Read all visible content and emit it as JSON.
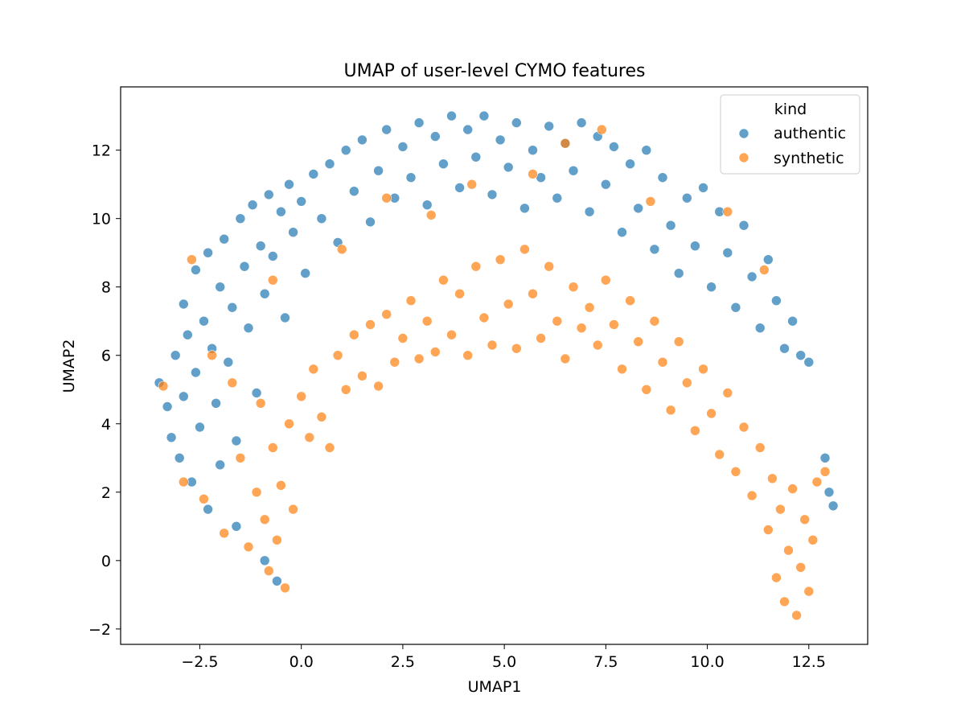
{
  "chart_data": {
    "type": "scatter",
    "title": "UMAP of user-level CYMO features",
    "xlabel": "UMAP1",
    "ylabel": "UMAP2",
    "xlim": [
      -4.45,
      13.95
    ],
    "ylim": [
      -2.45,
      13.85
    ],
    "xticks": [
      -2.5,
      0.0,
      2.5,
      5.0,
      7.5,
      10.0,
      12.5
    ],
    "xtick_labels": [
      "−2.5",
      "0.0",
      "2.5",
      "5.0",
      "7.5",
      "10.0",
      "12.5"
    ],
    "yticks": [
      -2,
      0,
      2,
      4,
      6,
      8,
      10,
      12
    ],
    "ytick_labels": [
      "−2",
      "0",
      "2",
      "4",
      "6",
      "8",
      "10",
      "12"
    ],
    "grid": false,
    "legend": {
      "title": "kind",
      "placement": "top-right"
    },
    "series": [
      {
        "name": "authentic",
        "color": "#1f77b4",
        "points": [
          [
            -3.5,
            5.2
          ],
          [
            -3.3,
            4.5
          ],
          [
            -3.2,
            3.6
          ],
          [
            -3.1,
            6.0
          ],
          [
            -3.0,
            3.0
          ],
          [
            -2.9,
            7.5
          ],
          [
            -2.9,
            4.8
          ],
          [
            -2.8,
            6.6
          ],
          [
            -2.7,
            2.3
          ],
          [
            -2.6,
            8.5
          ],
          [
            -2.6,
            5.5
          ],
          [
            -2.5,
            3.9
          ],
          [
            -2.4,
            7.0
          ],
          [
            -2.3,
            9.0
          ],
          [
            -2.3,
            1.5
          ],
          [
            -2.2,
            6.2
          ],
          [
            -2.1,
            4.6
          ],
          [
            -2.0,
            8.0
          ],
          [
            -2.0,
            2.8
          ],
          [
            -1.9,
            9.4
          ],
          [
            -1.8,
            5.8
          ],
          [
            -1.7,
            7.4
          ],
          [
            -1.6,
            1.0
          ],
          [
            -1.6,
            3.5
          ],
          [
            -1.5,
            10.0
          ],
          [
            -1.4,
            8.6
          ],
          [
            -1.3,
            6.8
          ],
          [
            -1.2,
            10.4
          ],
          [
            -1.1,
            4.9
          ],
          [
            -1.0,
            9.2
          ],
          [
            -0.9,
            0.0
          ],
          [
            -0.9,
            7.8
          ],
          [
            -0.8,
            10.7
          ],
          [
            -0.7,
            8.9
          ],
          [
            -0.6,
            -0.6
          ],
          [
            -0.5,
            10.2
          ],
          [
            -0.4,
            7.1
          ],
          [
            -0.3,
            11.0
          ],
          [
            -0.2,
            9.6
          ],
          [
            0.0,
            10.5
          ],
          [
            0.1,
            8.4
          ],
          [
            0.3,
            11.3
          ],
          [
            0.5,
            10.0
          ],
          [
            0.7,
            11.6
          ],
          [
            0.9,
            9.3
          ],
          [
            1.1,
            12.0
          ],
          [
            1.3,
            10.8
          ],
          [
            1.5,
            12.3
          ],
          [
            1.7,
            9.9
          ],
          [
            1.9,
            11.4
          ],
          [
            2.1,
            12.6
          ],
          [
            2.3,
            10.6
          ],
          [
            2.5,
            12.1
          ],
          [
            2.7,
            11.2
          ],
          [
            2.9,
            12.8
          ],
          [
            3.1,
            10.4
          ],
          [
            3.3,
            12.4
          ],
          [
            3.5,
            11.6
          ],
          [
            3.7,
            13.0
          ],
          [
            3.9,
            10.9
          ],
          [
            4.1,
            12.6
          ],
          [
            4.3,
            11.8
          ],
          [
            4.5,
            13.0
          ],
          [
            4.7,
            10.7
          ],
          [
            4.9,
            12.3
          ],
          [
            5.1,
            11.5
          ],
          [
            5.3,
            12.8
          ],
          [
            5.5,
            10.3
          ],
          [
            5.7,
            12.0
          ],
          [
            5.9,
            11.2
          ],
          [
            6.1,
            12.7
          ],
          [
            6.3,
            10.6
          ],
          [
            6.5,
            12.2
          ],
          [
            6.7,
            11.4
          ],
          [
            6.9,
            12.8
          ],
          [
            7.1,
            10.2
          ],
          [
            7.3,
            12.4
          ],
          [
            7.5,
            11.0
          ],
          [
            7.7,
            12.1
          ],
          [
            7.9,
            9.6
          ],
          [
            8.1,
            11.6
          ],
          [
            8.3,
            10.3
          ],
          [
            8.5,
            12.0
          ],
          [
            8.7,
            9.1
          ],
          [
            8.9,
            11.2
          ],
          [
            9.1,
            9.8
          ],
          [
            9.3,
            8.4
          ],
          [
            9.5,
            10.6
          ],
          [
            9.7,
            9.2
          ],
          [
            9.9,
            10.9
          ],
          [
            10.1,
            8.0
          ],
          [
            10.3,
            10.2
          ],
          [
            10.5,
            9.0
          ],
          [
            10.7,
            7.4
          ],
          [
            10.9,
            9.8
          ],
          [
            11.1,
            8.3
          ],
          [
            11.3,
            6.8
          ],
          [
            11.5,
            8.8
          ],
          [
            11.7,
            7.6
          ],
          [
            11.9,
            6.2
          ],
          [
            12.1,
            7.0
          ],
          [
            12.3,
            6.0
          ],
          [
            12.5,
            5.8
          ],
          [
            12.9,
            3.0
          ],
          [
            13.0,
            2.0
          ],
          [
            13.1,
            1.6
          ]
        ]
      },
      {
        "name": "synthetic",
        "color": "#ff7f0e",
        "points": [
          [
            -3.4,
            5.1
          ],
          [
            -2.9,
            2.3
          ],
          [
            -2.7,
            8.8
          ],
          [
            -2.4,
            1.8
          ],
          [
            -2.2,
            6.0
          ],
          [
            -1.9,
            0.8
          ],
          [
            -1.7,
            5.2
          ],
          [
            -1.5,
            3.0
          ],
          [
            -1.3,
            0.4
          ],
          [
            -1.1,
            2.0
          ],
          [
            -1.0,
            4.6
          ],
          [
            -0.9,
            1.2
          ],
          [
            -0.8,
            -0.3
          ],
          [
            -0.7,
            3.3
          ],
          [
            -0.6,
            0.6
          ],
          [
            -0.5,
            2.2
          ],
          [
            -0.4,
            -0.8
          ],
          [
            -0.3,
            4.0
          ],
          [
            -0.2,
            1.5
          ],
          [
            0.0,
            4.8
          ],
          [
            0.2,
            3.6
          ],
          [
            0.3,
            5.6
          ],
          [
            0.5,
            4.2
          ],
          [
            0.7,
            3.3
          ],
          [
            0.9,
            6.0
          ],
          [
            1.1,
            5.0
          ],
          [
            1.3,
            6.6
          ],
          [
            1.5,
            5.4
          ],
          [
            1.7,
            6.9
          ],
          [
            1.9,
            5.1
          ],
          [
            2.1,
            7.2
          ],
          [
            2.3,
            5.8
          ],
          [
            2.5,
            6.5
          ],
          [
            2.7,
            7.6
          ],
          [
            2.9,
            5.9
          ],
          [
            3.1,
            7.0
          ],
          [
            3.3,
            6.1
          ],
          [
            3.5,
            8.2
          ],
          [
            3.7,
            6.6
          ],
          [
            3.9,
            7.8
          ],
          [
            4.1,
            6.0
          ],
          [
            4.3,
            8.6
          ],
          [
            4.5,
            7.1
          ],
          [
            4.7,
            6.3
          ],
          [
            4.9,
            8.8
          ],
          [
            5.1,
            7.5
          ],
          [
            5.3,
            6.2
          ],
          [
            5.5,
            9.1
          ],
          [
            5.7,
            7.8
          ],
          [
            5.9,
            6.5
          ],
          [
            6.1,
            8.6
          ],
          [
            6.3,
            7.0
          ],
          [
            6.5,
            5.9
          ],
          [
            6.7,
            8.0
          ],
          [
            6.9,
            6.8
          ],
          [
            7.1,
            7.4
          ],
          [
            7.3,
            6.3
          ],
          [
            7.5,
            8.2
          ],
          [
            7.7,
            6.9
          ],
          [
            7.9,
            5.6
          ],
          [
            8.1,
            7.6
          ],
          [
            8.3,
            6.4
          ],
          [
            8.5,
            5.0
          ],
          [
            8.7,
            7.0
          ],
          [
            8.9,
            5.8
          ],
          [
            9.1,
            4.4
          ],
          [
            9.3,
            6.4
          ],
          [
            9.5,
            5.2
          ],
          [
            9.7,
            3.8
          ],
          [
            9.9,
            5.6
          ],
          [
            10.1,
            4.3
          ],
          [
            10.3,
            3.1
          ],
          [
            10.5,
            4.9
          ],
          [
            10.7,
            2.6
          ],
          [
            10.9,
            3.9
          ],
          [
            11.1,
            1.9
          ],
          [
            11.3,
            3.3
          ],
          [
            11.5,
            0.9
          ],
          [
            11.6,
            2.4
          ],
          [
            11.7,
            -0.5
          ],
          [
            11.8,
            1.5
          ],
          [
            11.9,
            -1.2
          ],
          [
            12.0,
            0.3
          ],
          [
            12.1,
            2.1
          ],
          [
            12.2,
            -1.6
          ],
          [
            12.3,
            -0.2
          ],
          [
            12.4,
            1.2
          ],
          [
            12.5,
            -0.9
          ],
          [
            12.6,
            0.6
          ],
          [
            12.7,
            2.3
          ],
          [
            12.9,
            2.6
          ],
          [
            4.2,
            11.0
          ],
          [
            3.2,
            10.1
          ],
          [
            2.1,
            10.6
          ],
          [
            6.5,
            12.2
          ],
          [
            8.6,
            10.5
          ],
          [
            10.5,
            10.2
          ],
          [
            11.4,
            8.5
          ],
          [
            1.0,
            9.1
          ],
          [
            -0.7,
            8.2
          ],
          [
            7.4,
            12.6
          ],
          [
            5.7,
            11.3
          ]
        ]
      }
    ]
  }
}
